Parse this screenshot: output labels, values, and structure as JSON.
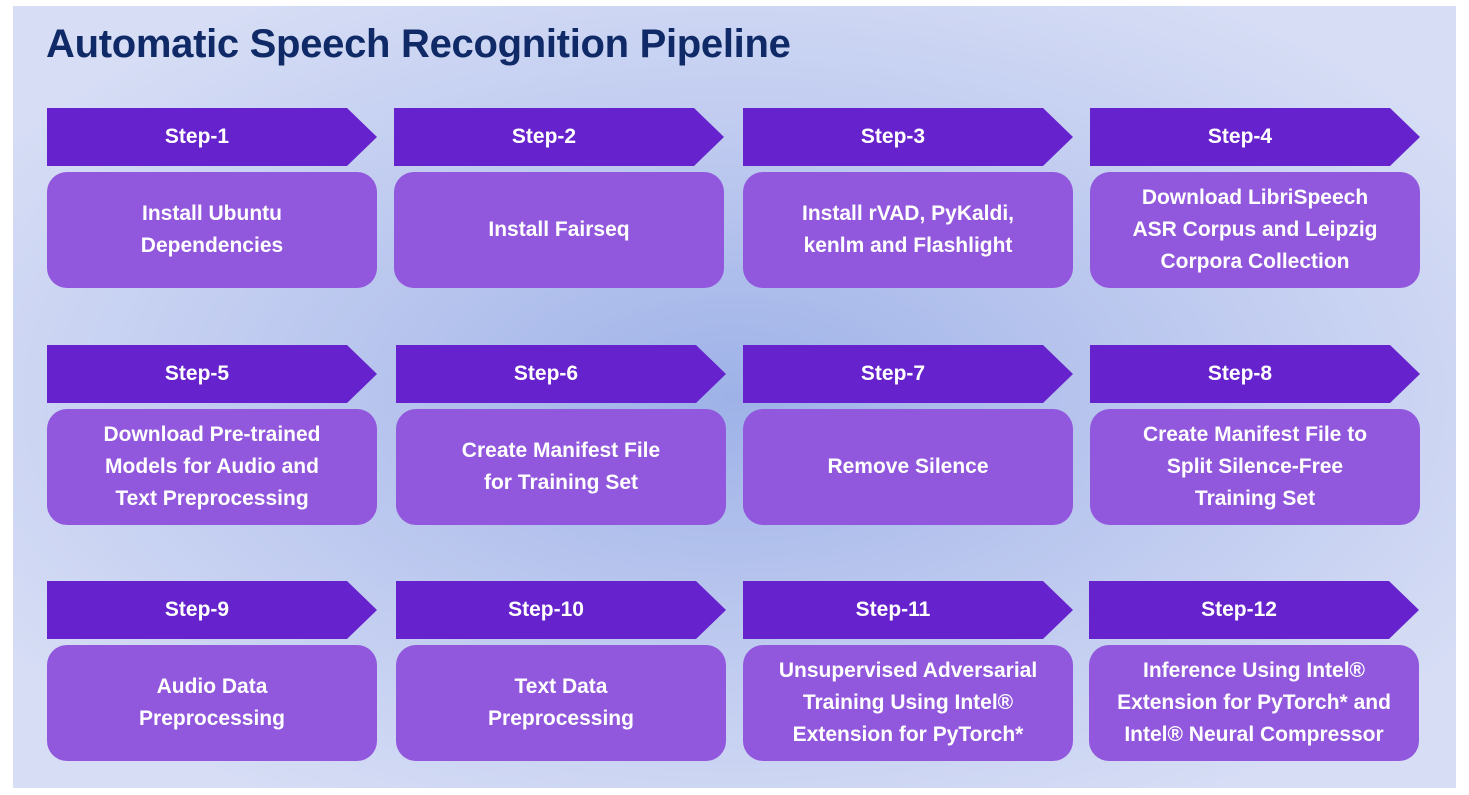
{
  "title": "Automatic Speech Recognition Pipeline",
  "steps": [
    {
      "label": "Step-1",
      "text": "Install Ubuntu\nDependencies"
    },
    {
      "label": "Step-2",
      "text": "Install Fairseq"
    },
    {
      "label": "Step-3",
      "text": "Install rVAD, PyKaldi,\nkenlm and Flashlight"
    },
    {
      "label": "Step-4",
      "text": "Download LibriSpeech\nASR Corpus and Leipzig\nCorpora Collection"
    },
    {
      "label": "Step-5",
      "text": "Download Pre-trained\nModels for Audio and\nText Preprocessing"
    },
    {
      "label": "Step-6",
      "text": "Create Manifest File\nfor Training Set"
    },
    {
      "label": "Step-7",
      "text": "Remove Silence"
    },
    {
      "label": "Step-8",
      "text": "Create Manifest File to\nSplit Silence-Free\nTraining Set"
    },
    {
      "label": "Step-9",
      "text": "Audio Data\nPreprocessing"
    },
    {
      "label": "Step-10",
      "text": "Text Data\nPreprocessing"
    },
    {
      "label": "Step-11",
      "text": "Unsupervised Adversarial\nTraining Using Intel®\nExtension for PyTorch*"
    },
    {
      "label": "Step-12",
      "text": "Inference Using Intel®\nExtension for PyTorch* and\nIntel® Neural Compressor"
    }
  ]
}
